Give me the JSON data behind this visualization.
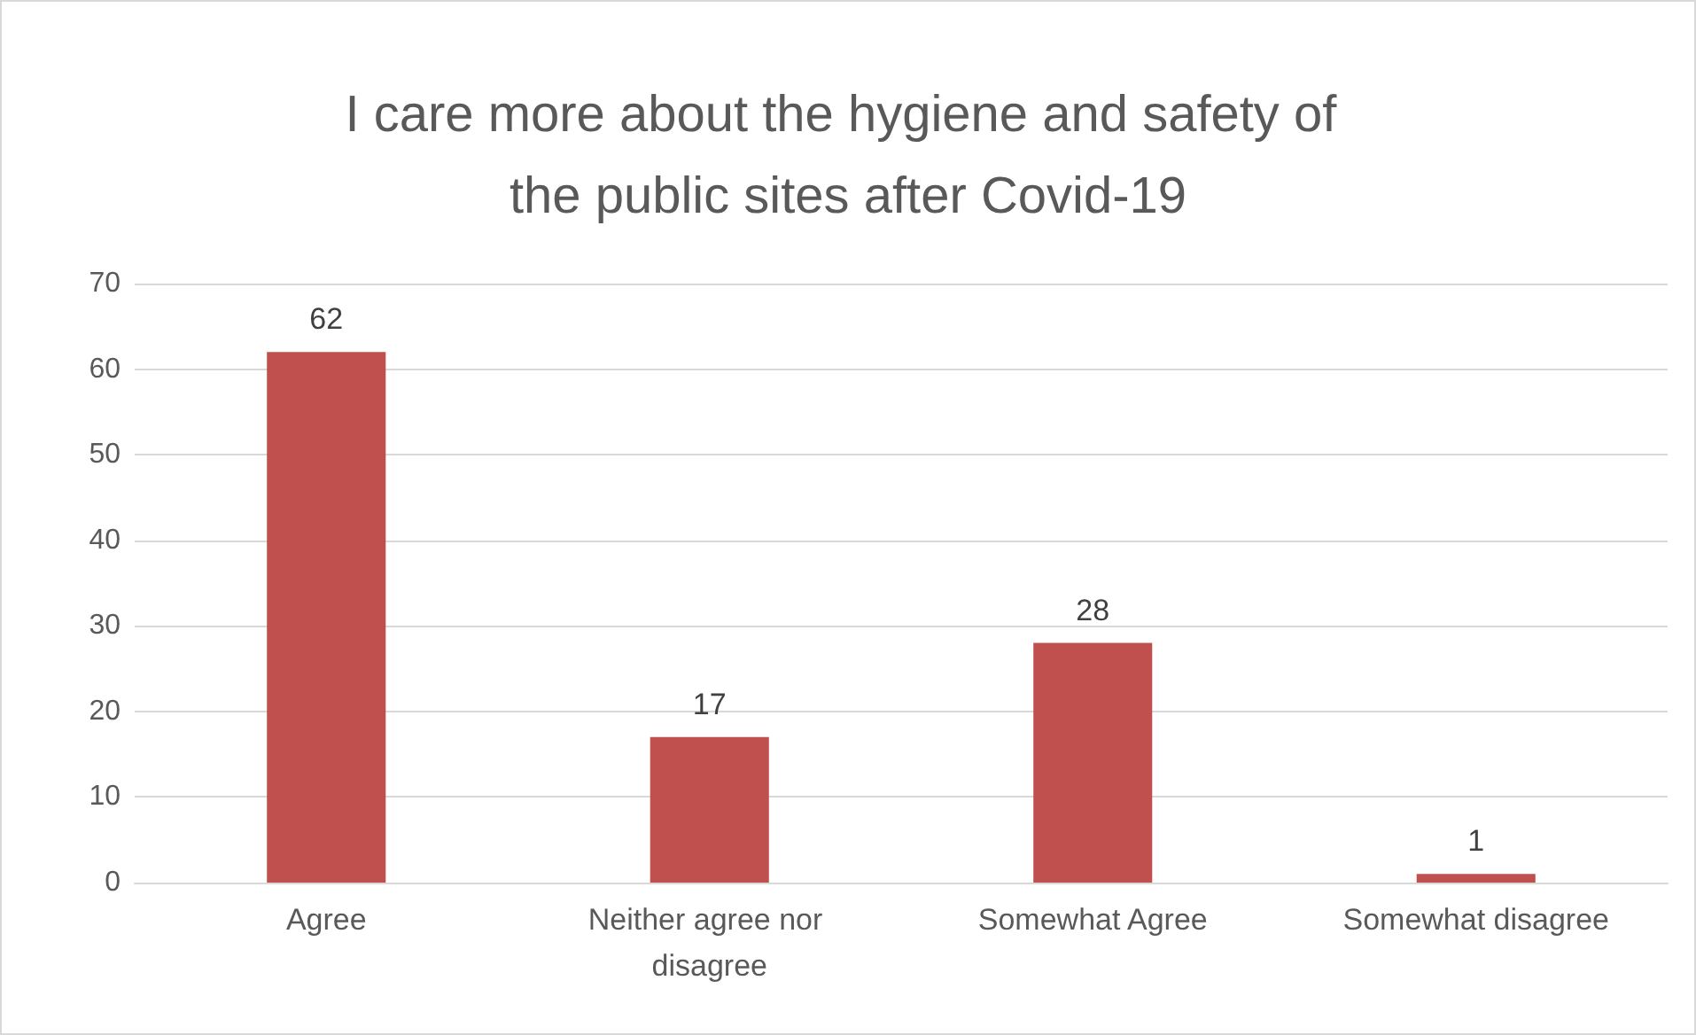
{
  "chart_data": {
    "type": "bar",
    "title": "I care more about the hygiene and safety of the public sites after Covid-19",
    "categories": [
      "Agree",
      "Neither agree nor disagree",
      "Somewhat Agree",
      "Somewhat disagree"
    ],
    "values": [
      62,
      17,
      28,
      1
    ],
    "color": "#c0504d",
    "ylim": [
      0,
      70
    ],
    "yticks": [
      0,
      10,
      20,
      30,
      40,
      50,
      60,
      70
    ],
    "grid": "y",
    "data_labels": true
  }
}
